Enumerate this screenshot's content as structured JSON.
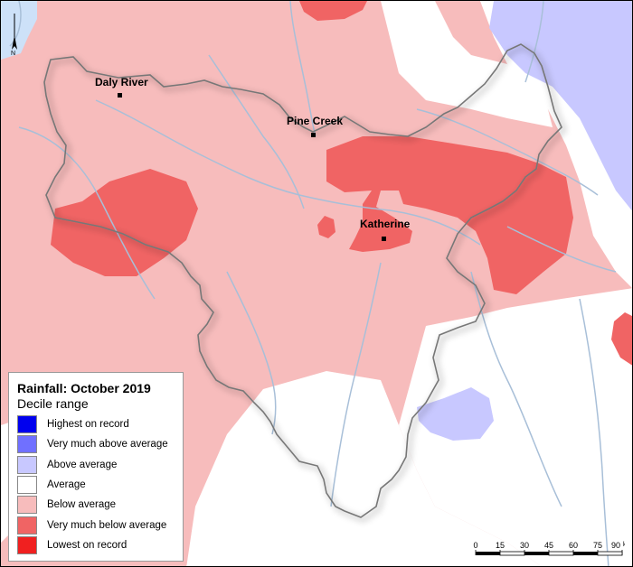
{
  "legend": {
    "title": "Rainfall: October 2019",
    "subtitle": "Decile range",
    "items": [
      {
        "label": "Highest on record",
        "color": "#0000ee"
      },
      {
        "label": "Very much above average",
        "color": "#7070ff"
      },
      {
        "label": "Above average",
        "color": "#c8c8ff"
      },
      {
        "label": "Average",
        "color": "#ffffff"
      },
      {
        "label": "Below average",
        "color": "#f7bcbc"
      },
      {
        "label": "Very much below average",
        "color": "#f06464"
      },
      {
        "label": "Lowest on record",
        "color": "#f02020"
      }
    ]
  },
  "towns": [
    {
      "name": "Daly River"
    },
    {
      "name": "Pine Creek"
    },
    {
      "name": "Katherine"
    }
  ],
  "scale": {
    "ticks": [
      "0",
      "15",
      "30",
      "45",
      "60",
      "75",
      "90"
    ],
    "unit": "km"
  },
  "north_arrow": {
    "label": "N"
  },
  "colors": {
    "sea": "#cde1f8",
    "river": "#a8bfd8",
    "region_outline": "#777777"
  }
}
